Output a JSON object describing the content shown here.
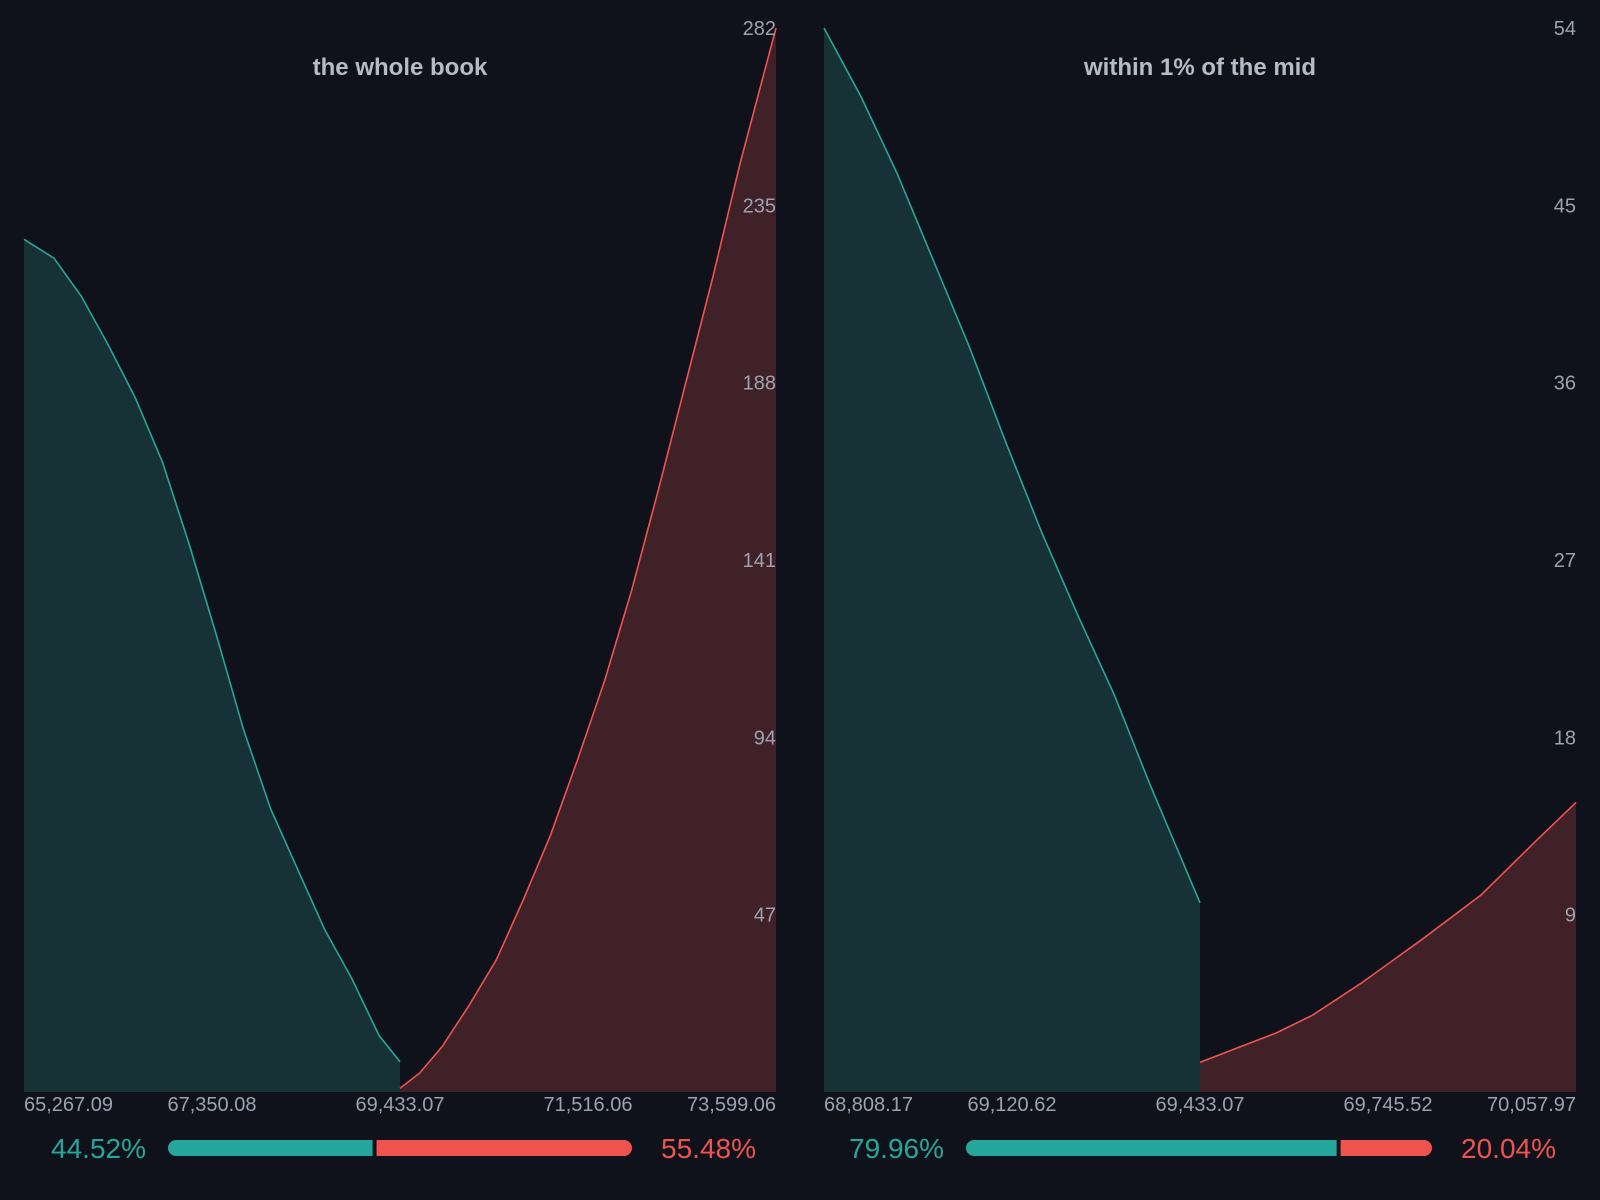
{
  "colors": {
    "background": "#0f121b",
    "bid_line": "#26a69a",
    "bid_fill": "#163236",
    "ask_line": "#ef5350",
    "ask_fill": "#402127",
    "text": "#9aa3b0",
    "title": "#b4bcc8"
  },
  "chart_data": [
    {
      "type": "area",
      "title": "the whole book",
      "xlabel": "",
      "ylabel": "",
      "xlim": [
        65267.09,
        73599.06
      ],
      "ylim": [
        0,
        282
      ],
      "x_ticks": [
        "65,267.09",
        "67,350.08",
        "69,433.07",
        "71,516.06",
        "73,599.06"
      ],
      "y_ticks": [
        "47",
        "94",
        "141",
        "188",
        "235",
        "282"
      ],
      "series": [
        {
          "side": "bid",
          "x": [
            65267.09,
            65600,
            65900,
            66200,
            66500,
            66800,
            67100,
            67400,
            67700,
            68000,
            68300,
            68600,
            68900,
            69200,
            69433.07
          ],
          "y": [
            226,
            221,
            211,
            198,
            184,
            167,
            145,
            121,
            96,
            75,
            59,
            43,
            30,
            15,
            8
          ]
        },
        {
          "side": "ask",
          "x": [
            69433.07,
            69650,
            69900,
            70200,
            70500,
            70800,
            71100,
            71400,
            71700,
            72000,
            72300,
            72600,
            72900,
            73200,
            73599.06
          ],
          "y": [
            1,
            5,
            12,
            23,
            35,
            51,
            68,
            88,
            109,
            133,
            160,
            188,
            216,
            246,
            282
          ]
        }
      ],
      "split": {
        "bid_pct": "44.52%",
        "ask_pct": "55.48%",
        "bid_fraction": 0.4452
      }
    },
    {
      "type": "area",
      "title": "within 1% of the mid",
      "xlabel": "",
      "ylabel": "",
      "xlim": [
        68808.17,
        70057.97
      ],
      "ylim": [
        0,
        54
      ],
      "x_ticks": [
        "68,808.17",
        "69,120.62",
        "69,433.07",
        "69,745.52",
        "70,057.97"
      ],
      "y_ticks": [
        "9",
        "18",
        "27",
        "36",
        "45",
        "54"
      ],
      "series": [
        {
          "side": "bid",
          "x": [
            68808.17,
            68870,
            68930,
            68990,
            69050,
            69110,
            69170,
            69230,
            69290,
            69350,
            69433.07
          ],
          "y": [
            54,
            50.5,
            46.6,
            42.2,
            37.8,
            33,
            28.4,
            24.2,
            20.2,
            15.6,
            9.6
          ]
        },
        {
          "side": "ask",
          "x": [
            69433.07,
            69500,
            69560,
            69620,
            69700,
            69800,
            69900,
            69990,
            70057.97
          ],
          "y": [
            1.5,
            2.3,
            3.0,
            3.9,
            5.5,
            7.7,
            10,
            12.7,
            14.7
          ]
        }
      ],
      "split": {
        "bid_pct": "79.96%",
        "ask_pct": "20.04%",
        "bid_fraction": 0.7996
      }
    }
  ]
}
